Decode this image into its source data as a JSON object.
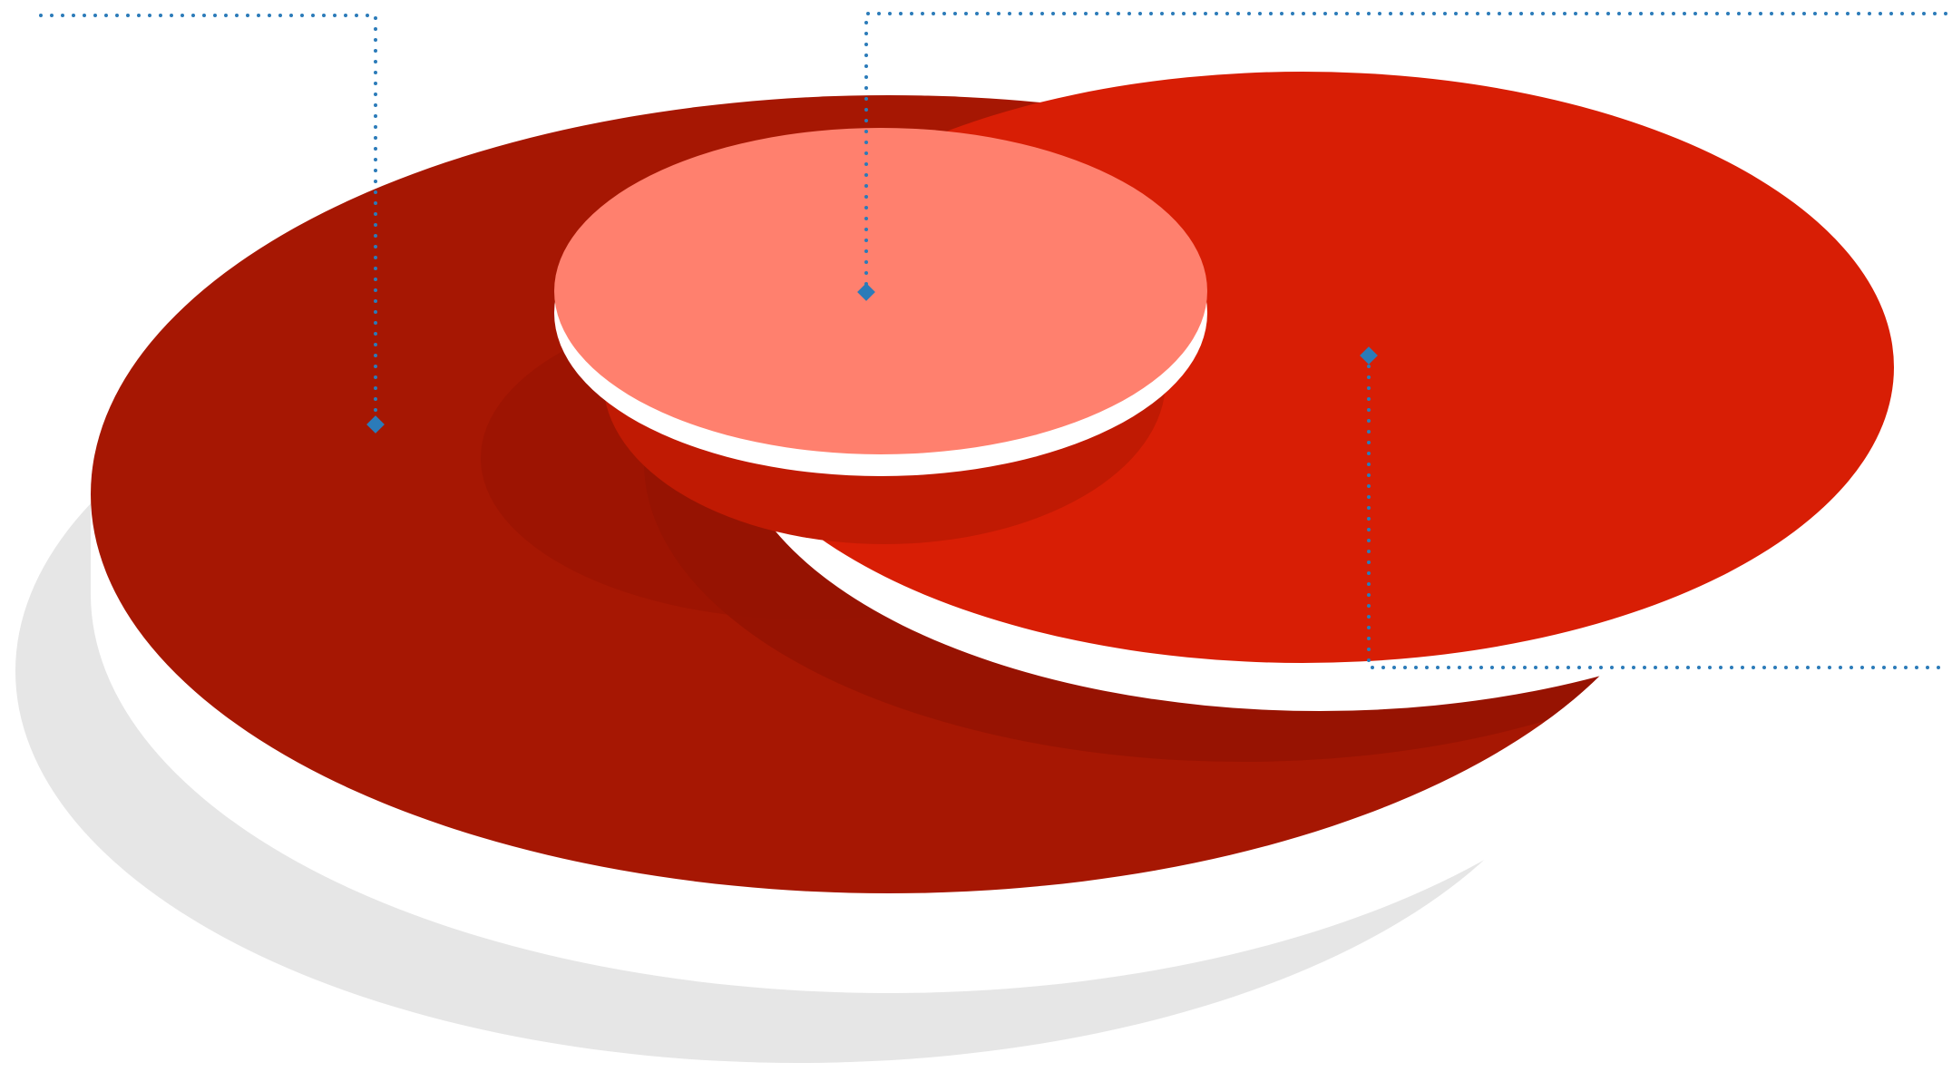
{
  "colors": {
    "background": "#ffffff",
    "shadow": "#e6e6e6",
    "large_disc": "#a61703",
    "large_disc_inner_shadow": "#961302",
    "medium_disc": "#d81e05",
    "medium_disc_shadow": "#c01a03",
    "small_disc": "#ff806e",
    "separator": "#ffffff",
    "leader_line": "#2b7bb9"
  },
  "discs": [
    {
      "id": "large",
      "shape": "ellipse",
      "color_key": "large_disc"
    },
    {
      "id": "medium",
      "shape": "ellipse",
      "color_key": "medium_disc"
    },
    {
      "id": "small",
      "shape": "ellipse",
      "color_key": "small_disc"
    }
  ],
  "callouts": [
    {
      "id": "large",
      "marker_shape": "diamond",
      "line_style": "dotted"
    },
    {
      "id": "small",
      "marker_shape": "diamond",
      "line_style": "dotted"
    },
    {
      "id": "medium",
      "marker_shape": "diamond",
      "line_style": "dotted"
    }
  ]
}
